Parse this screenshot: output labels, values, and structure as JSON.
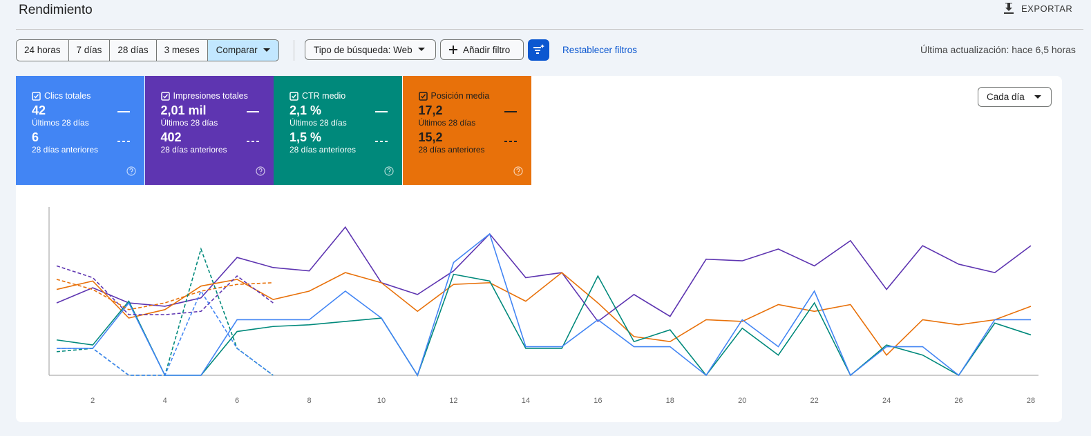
{
  "header": {
    "title": "Rendimiento",
    "export": "EXPORTAR"
  },
  "filters": {
    "ranges": [
      "24 horas",
      "7 días",
      "28 días",
      "3 meses"
    ],
    "compare": "Comparar",
    "search_type": "Tipo de búsqueda: Web",
    "add_filter": "Añadir filtro",
    "reset": "Restablecer filtros",
    "updated": "Última actualización: hace 6,5 horas"
  },
  "metrics": [
    {
      "label": "Clics totales",
      "current": "42",
      "current_label": "Últimos 28 días",
      "previous": "6",
      "previous_label": "28 días anteriores",
      "color": "#4285f4"
    },
    {
      "label": "Impresiones totales",
      "current": "2,01 mil",
      "current_label": "Últimos 28 días",
      "previous": "402",
      "previous_label": "28 días anteriores",
      "color": "#5e35b1"
    },
    {
      "label": "CTR medio",
      "current": "2,1 %",
      "current_label": "Últimos 28 días",
      "previous": "1,5 %",
      "previous_label": "28 días anteriores",
      "color": "#00897b"
    },
    {
      "label": "Posición media",
      "current": "17,2",
      "current_label": "Últimos 28 días",
      "previous": "15,2",
      "previous_label": "28 días anteriores",
      "color": "#e8710a"
    }
  ],
  "granularity": "Cada día",
  "chart_data": {
    "type": "line",
    "categories": [
      null,
      "2",
      null,
      "4",
      null,
      "6",
      null,
      "8",
      null,
      "10",
      null,
      "12",
      null,
      "14",
      null,
      "16",
      null,
      "18",
      null,
      "20",
      null,
      "22",
      null,
      "24",
      null,
      "26",
      null,
      "28"
    ],
    "ylim": [
      0,
      100
    ],
    "series": [
      {
        "color": "#5e35b1",
        "dashed": false,
        "values": [
          43,
          52,
          43,
          41,
          46,
          70,
          64,
          62,
          88,
          55,
          48,
          62,
          84,
          58,
          61,
          32,
          48,
          35,
          69,
          68,
          75,
          65,
          80,
          51,
          77,
          66,
          61,
          77
        ]
      },
      {
        "color": "#e8710a",
        "dashed": false,
        "values": [
          51,
          56,
          34,
          39,
          53,
          57,
          45,
          50,
          61,
          55,
          38,
          54,
          55,
          44,
          61,
          43,
          23,
          20,
          33,
          32,
          42,
          38,
          42,
          12,
          33,
          30,
          33,
          41
        ]
      },
      {
        "color": "#00897b",
        "dashed": false,
        "values": [
          21,
          18,
          44,
          0,
          0,
          26,
          29,
          30,
          32,
          34,
          0,
          60,
          56,
          16,
          16,
          59,
          20,
          27,
          0,
          28,
          12,
          43,
          0,
          18,
          12,
          0,
          31,
          24
        ]
      },
      {
        "color": "#4285f4",
        "dashed": false,
        "values": [
          16,
          16,
          43,
          0,
          0,
          33,
          33,
          33,
          50,
          34,
          0,
          67,
          84,
          17,
          17,
          33,
          17,
          17,
          0,
          33,
          17,
          50,
          0,
          17,
          17,
          0,
          33,
          33
        ]
      },
      {
        "color": "#5e35b1",
        "dashed": true,
        "values": [
          65,
          58,
          36,
          36,
          38,
          59,
          43,
          null,
          null,
          null,
          null,
          null,
          null,
          null,
          null,
          null,
          null,
          null,
          null,
          null,
          null,
          null,
          null,
          null,
          null,
          null,
          null,
          null
        ]
      },
      {
        "color": "#e8710a",
        "dashed": true,
        "values": [
          57,
          51,
          39,
          43,
          50,
          54,
          55,
          null,
          null,
          null,
          null,
          null,
          null,
          null,
          null,
          null,
          null,
          null,
          null,
          null,
          null,
          null,
          null,
          null,
          null,
          null,
          null,
          null
        ]
      },
      {
        "color": "#00897b",
        "dashed": true,
        "values": [
          14,
          16,
          0,
          0,
          75,
          16,
          0,
          null,
          null,
          null,
          null,
          null,
          null,
          null,
          null,
          null,
          null,
          null,
          null,
          null,
          null,
          null,
          null,
          null,
          null,
          null,
          null,
          null
        ]
      },
      {
        "color": "#4285f4",
        "dashed": true,
        "values": [
          16,
          16,
          0,
          0,
          50,
          16,
          0,
          null,
          null,
          null,
          null,
          null,
          null,
          null,
          null,
          null,
          null,
          null,
          null,
          null,
          null,
          null,
          null,
          null,
          null,
          null,
          null,
          null
        ]
      }
    ]
  }
}
